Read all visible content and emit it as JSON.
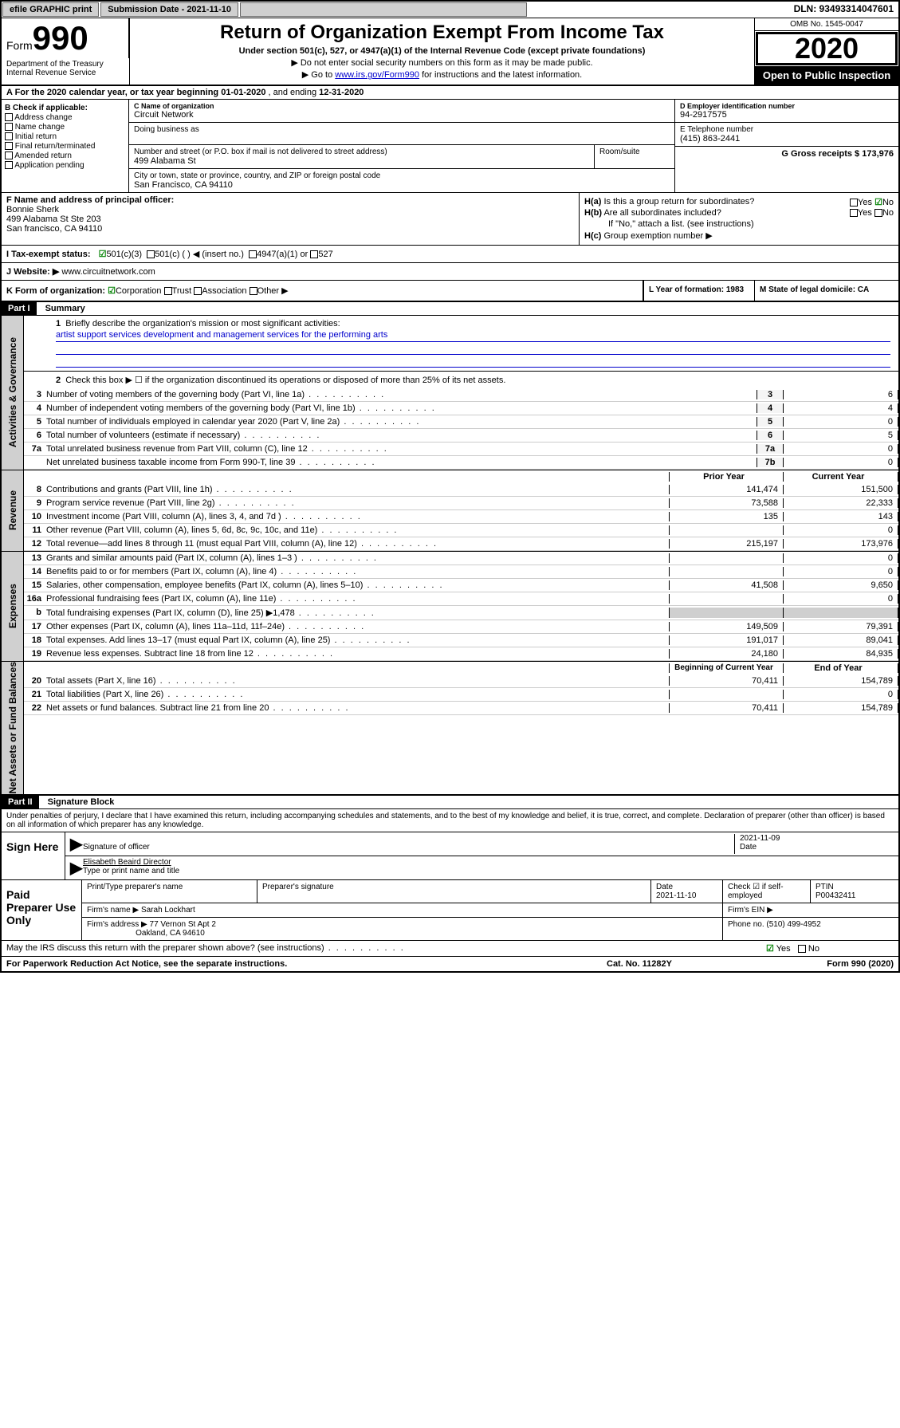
{
  "topbar": {
    "efile": "efile GRAPHIC print",
    "submission_label": "Submission Date - 2021-11-10",
    "dln": "DLN: 93493314047601"
  },
  "header": {
    "form_label": "Form",
    "form_number": "990",
    "title": "Return of Organization Exempt From Income Tax",
    "subtitle": "Under section 501(c), 527, or 4947(a)(1) of the Internal Revenue Code (except private foundations)",
    "note1": "▶ Do not enter social security numbers on this form as it may be made public.",
    "note2_prefix": "▶ Go to ",
    "note2_link": "www.irs.gov/Form990",
    "note2_suffix": " for instructions and the latest information.",
    "omb": "OMB No. 1545-0047",
    "year": "2020",
    "open_public": "Open to Public Inspection",
    "dept": "Department of the Treasury Internal Revenue Service"
  },
  "section_a": {
    "prefix": "A  For the 2020 calendar year, or tax year beginning ",
    "begin": "01-01-2020",
    "mid": " , and ending ",
    "end": "12-31-2020"
  },
  "section_b": {
    "label": "B Check if applicable:",
    "items": [
      "Address change",
      "Name change",
      "Initial return",
      "Final return/terminated",
      "Amended return",
      "Application pending"
    ]
  },
  "section_c": {
    "name_label": "C Name of organization",
    "name": "Circuit Network",
    "dba_label": "Doing business as",
    "addr_label": "Number and street (or P.O. box if mail is not delivered to street address)",
    "room_label": "Room/suite",
    "addr": "499 Alabama St",
    "city_label": "City or town, state or province, country, and ZIP or foreign postal code",
    "city": "San Francisco, CA  94110"
  },
  "section_d": {
    "label": "D Employer identification number",
    "value": "94-2917575"
  },
  "section_e": {
    "label": "E Telephone number",
    "value": "(415) 863-2441"
  },
  "section_g": {
    "label": "G Gross receipts $ 173,976"
  },
  "section_f": {
    "label": "F  Name and address of principal officer:",
    "name": "Bonnie Sherk",
    "addr1": "499 Alabama St Ste 203",
    "addr2": "San francisco, CA  94110"
  },
  "section_h": {
    "a": "Is this a group return for subordinates?",
    "b": "Are all subordinates included?",
    "note": "If \"No,\" attach a list. (see instructions)",
    "c": "Group exemption number ▶",
    "ha_label": "H(a)",
    "hb_label": "H(b)",
    "hc_label": "H(c)",
    "yes": "Yes",
    "no": "No"
  },
  "section_i": {
    "label": "I   Tax-exempt status:",
    "opt1": "501(c)(3)",
    "opt2": "501(c) (   ) ◀ (insert no.)",
    "opt3": "4947(a)(1) or",
    "opt4": "527"
  },
  "section_j": {
    "label": "J   Website: ▶",
    "value": "www.circuitnetwork.com"
  },
  "section_k": {
    "label": "K Form of organization:",
    "opts": [
      "Corporation",
      "Trust",
      "Association",
      "Other ▶"
    ]
  },
  "section_l": {
    "label": "L Year of formation: 1983"
  },
  "section_m": {
    "label": "M State of legal domicile: CA"
  },
  "part1": {
    "header": "Part I",
    "title": "Summary",
    "line1_label": "Briefly describe the organization's mission or most significant activities:",
    "line1_num": "1",
    "mission": "artist support services development and management services for the performing arts",
    "line2": "Check this box ▶ ☐  if the organization discontinued its operations or disposed of more than 25% of its net assets.",
    "line2_num": "2"
  },
  "vtabs": {
    "gov": "Activities & Governance",
    "rev": "Revenue",
    "exp": "Expenses",
    "net": "Net Assets or Fund Balances"
  },
  "gov_lines": [
    {
      "num": "3",
      "text": "Number of voting members of the governing body (Part VI, line 1a)",
      "col": "3",
      "val": "6"
    },
    {
      "num": "4",
      "text": "Number of independent voting members of the governing body (Part VI, line 1b)",
      "col": "4",
      "val": "4"
    },
    {
      "num": "5",
      "text": "Total number of individuals employed in calendar year 2020 (Part V, line 2a)",
      "col": "5",
      "val": "0"
    },
    {
      "num": "6",
      "text": "Total number of volunteers (estimate if necessary)",
      "col": "6",
      "val": "5"
    },
    {
      "num": "7a",
      "text": "Total unrelated business revenue from Part VIII, column (C), line 12",
      "col": "7a",
      "val": "0"
    },
    {
      "num": "",
      "text": "Net unrelated business taxable income from Form 990-T, line 39",
      "col": "7b",
      "val": "0"
    }
  ],
  "year_headers": {
    "prior": "Prior Year",
    "current": "Current Year",
    "begin": "Beginning of Current Year",
    "end": "End of Year"
  },
  "rev_lines": [
    {
      "num": "8",
      "text": "Contributions and grants (Part VIII, line 1h)",
      "prior": "141,474",
      "curr": "151,500"
    },
    {
      "num": "9",
      "text": "Program service revenue (Part VIII, line 2g)",
      "prior": "73,588",
      "curr": "22,333"
    },
    {
      "num": "10",
      "text": "Investment income (Part VIII, column (A), lines 3, 4, and 7d )",
      "prior": "135",
      "curr": "143"
    },
    {
      "num": "11",
      "text": "Other revenue (Part VIII, column (A), lines 5, 6d, 8c, 9c, 10c, and 11e)",
      "prior": "",
      "curr": "0"
    },
    {
      "num": "12",
      "text": "Total revenue—add lines 8 through 11 (must equal Part VIII, column (A), line 12)",
      "prior": "215,197",
      "curr": "173,976"
    }
  ],
  "exp_lines": [
    {
      "num": "13",
      "text": "Grants and similar amounts paid (Part IX, column (A), lines 1–3 )",
      "prior": "",
      "curr": "0"
    },
    {
      "num": "14",
      "text": "Benefits paid to or for members (Part IX, column (A), line 4)",
      "prior": "",
      "curr": "0"
    },
    {
      "num": "15",
      "text": "Salaries, other compensation, employee benefits (Part IX, column (A), lines 5–10)",
      "prior": "41,508",
      "curr": "9,650"
    },
    {
      "num": "16a",
      "text": "Professional fundraising fees (Part IX, column (A), line 11e)",
      "prior": "",
      "curr": "0"
    },
    {
      "num": "b",
      "text": "Total fundraising expenses (Part IX, column (D), line 25) ▶1,478",
      "prior": "GRAY",
      "curr": "GRAY"
    },
    {
      "num": "17",
      "text": "Other expenses (Part IX, column (A), lines 11a–11d, 11f–24e)",
      "prior": "149,509",
      "curr": "79,391"
    },
    {
      "num": "18",
      "text": "Total expenses. Add lines 13–17 (must equal Part IX, column (A), line 25)",
      "prior": "191,017",
      "curr": "89,041"
    },
    {
      "num": "19",
      "text": "Revenue less expenses. Subtract line 18 from line 12",
      "prior": "24,180",
      "curr": "84,935"
    }
  ],
  "net_lines": [
    {
      "num": "20",
      "text": "Total assets (Part X, line 16)",
      "prior": "70,411",
      "curr": "154,789"
    },
    {
      "num": "21",
      "text": "Total liabilities (Part X, line 26)",
      "prior": "",
      "curr": "0"
    },
    {
      "num": "22",
      "text": "Net assets or fund balances. Subtract line 21 from line 20",
      "prior": "70,411",
      "curr": "154,789"
    }
  ],
  "part2": {
    "header": "Part II",
    "title": "Signature Block",
    "declare": "Under penalties of perjury, I declare that I have examined this return, including accompanying schedules and statements, and to the best of my knowledge and belief, it is true, correct, and complete. Declaration of preparer (other than officer) is based on all information of which preparer has any knowledge."
  },
  "sign": {
    "label": "Sign Here",
    "sig_label": "Signature of officer",
    "date_label": "Date",
    "date": "2021-11-09",
    "name": "Elisabeth Beaird  Director",
    "name_label": "Type or print name and title"
  },
  "prep": {
    "label": "Paid Preparer Use Only",
    "name_label": "Print/Type preparer's name",
    "sig_label": "Preparer's signature",
    "date_label": "Date",
    "date": "2021-11-10",
    "check_label": "Check ☑ if self-employed",
    "ptin_label": "PTIN",
    "ptin": "P00432411",
    "firm_name_label": "Firm's name    ▶",
    "firm_name": "Sarah Lockhart",
    "firm_ein_label": "Firm's EIN ▶",
    "firm_addr_label": "Firm's address ▶",
    "firm_addr1": "77 Vernon St Apt 2",
    "firm_addr2": "Oakland, CA  94610",
    "phone_label": "Phone no. (510) 499-4952"
  },
  "footer": {
    "discuss": "May the IRS discuss this return with the preparer shown above? (see instructions)",
    "yes": "Yes",
    "no": "No",
    "paperwork": "For Paperwork Reduction Act Notice, see the separate instructions.",
    "cat": "Cat. No. 11282Y",
    "form": "Form 990 (2020)"
  }
}
